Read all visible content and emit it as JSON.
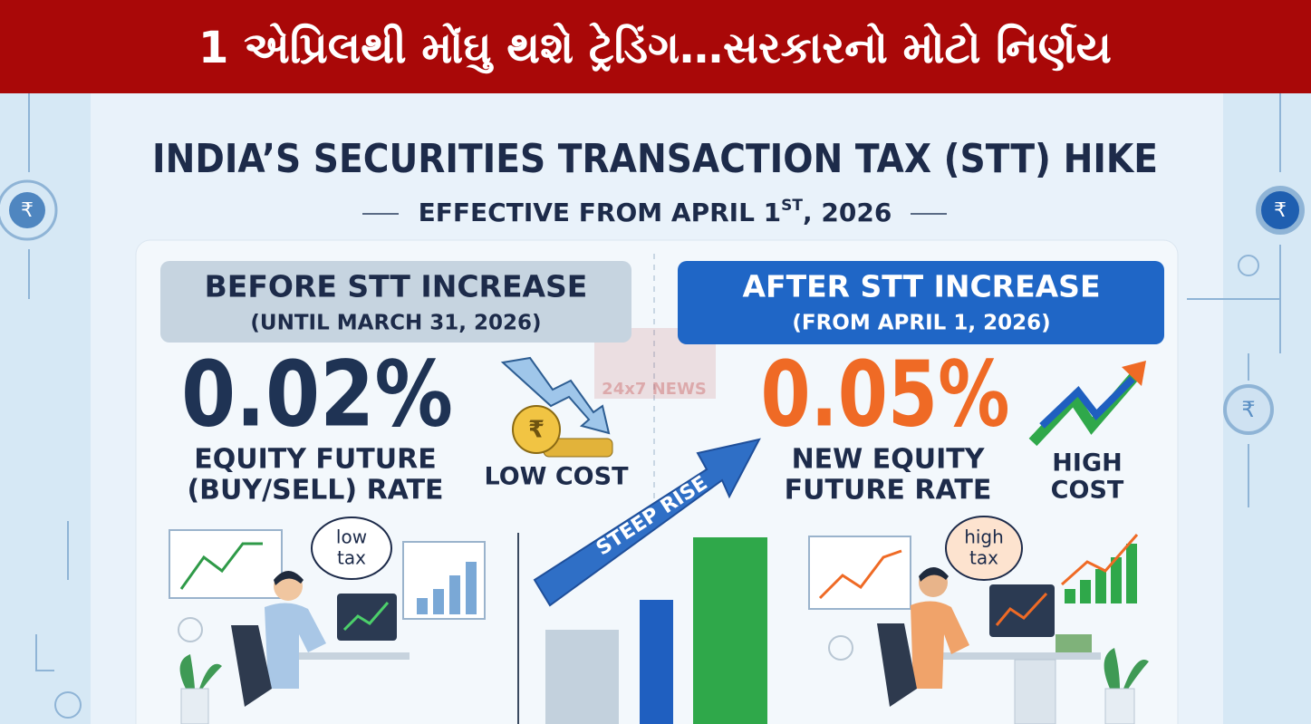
{
  "header": {
    "headline": "1 એપ્રિલથી મોંઘુ થશે ટ્રેડિંગ…સરકારનો મોટો નિર્ણય"
  },
  "infographic": {
    "title": "INDIA’S SECURITIES TRANSACTION TAX (STT) HIKE",
    "subtitle": [
      "EFFECTIVE FROM APRIL 1",
      "ST",
      ", 2026"
    ],
    "currency_symbol": "₹",
    "watermark": "24x7 NEWS"
  },
  "before": {
    "heading": "BEFORE STT INCREASE",
    "period": "(UNTIL MARCH 31, 2026)",
    "rate": "0.02%",
    "rate_label": [
      "EQUITY FUTURE",
      "(BUY/SELL) RATE"
    ],
    "badge": "LOW COST",
    "bubble": [
      "low",
      "tax"
    ]
  },
  "middle": {
    "arrow_label": "STEEP RISE"
  },
  "after": {
    "heading": "AFTER STT INCREASE",
    "period": "(FROM APRIL 1, 2026)",
    "rate": "0.05%",
    "rate_label": [
      "NEW EQUITY",
      "FUTURE RATE"
    ],
    "badge": [
      "HIGH",
      "COST"
    ],
    "bubble": [
      "high",
      "tax"
    ]
  }
}
